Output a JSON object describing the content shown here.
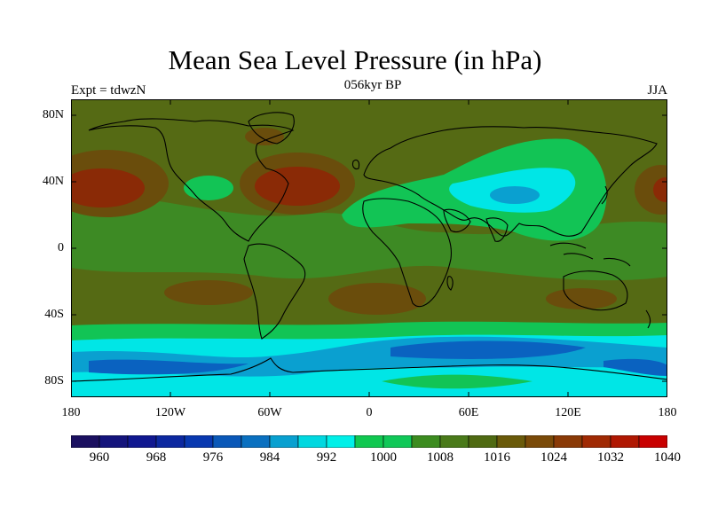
{
  "header": {
    "title": "Mean Sea Level Pressure (in hPa)",
    "experiment": "Expt = tdwzN",
    "period": "056kyr BP",
    "season": "JJA"
  },
  "axes": {
    "y_ticks": [
      "80N",
      "40N",
      "0",
      "40S",
      "80S"
    ],
    "x_ticks": [
      "180",
      "120W",
      "60W",
      "0",
      "60E",
      "120E",
      "180"
    ]
  },
  "colorbar": {
    "labels": [
      "960",
      "968",
      "976",
      "984",
      "992",
      "1000",
      "1008",
      "1016",
      "1024",
      "1032",
      "1040"
    ],
    "colors": [
      "#1b1060",
      "#14147c",
      "#101890",
      "#0c28a0",
      "#0838b0",
      "#0a58b8",
      "#0a70c0",
      "#08a0d0",
      "#00d8e0",
      "#00f0e8",
      "#10c850",
      "#10c858",
      "#3c8c20",
      "#4a7a1a",
      "#4f6a12",
      "#6a5a0a",
      "#7a4a08",
      "#8a3a06",
      "#a02a04",
      "#b01802",
      "#c80000"
    ]
  },
  "map": {
    "palette": {
      "land_line": "#000000",
      "high_1016": "#556a14",
      "mid_1008": "#3d8a24",
      "low_1000": "#12c455",
      "low_992": "#00e6e6",
      "low_984": "#0aa0d0",
      "low_976": "#0a62c0",
      "high_1024": "#7a4a08",
      "high_1032": "#8a2a06"
    }
  }
}
